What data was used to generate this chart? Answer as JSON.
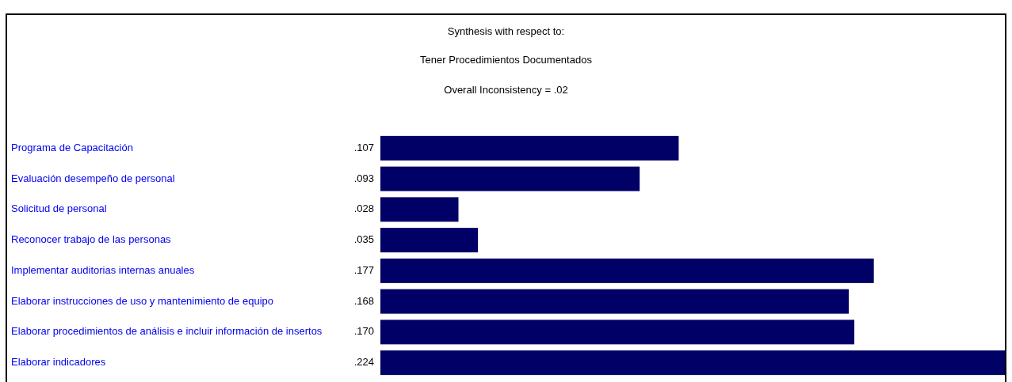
{
  "chart_data": {
    "type": "bar",
    "orientation": "horizontal",
    "title": "Synthesis with respect to:",
    "subtitle": "Tener Procedimientos Documentados",
    "annotations": [
      "Overall Inconsistency = .02"
    ],
    "categories": [
      "Programa de Capacitación",
      "Evaluación desempeño de personal",
      "Solicitud de personal",
      "Reconocer trabajo de las personas",
      "Implementar auditorias internas anuales",
      "Elaborar instrucciones de uso y mantenimiento de equipo",
      "Elaborar procedimientos de análisis e incluir información de insertos",
      "Elaborar indicadores"
    ],
    "values": [
      0.107,
      0.093,
      0.028,
      0.035,
      0.177,
      0.168,
      0.17,
      0.224
    ],
    "value_labels": [
      ".107",
      ".093",
      ".028",
      ".035",
      ".177",
      ".168",
      ".170",
      ".224"
    ],
    "color": "#000066"
  }
}
